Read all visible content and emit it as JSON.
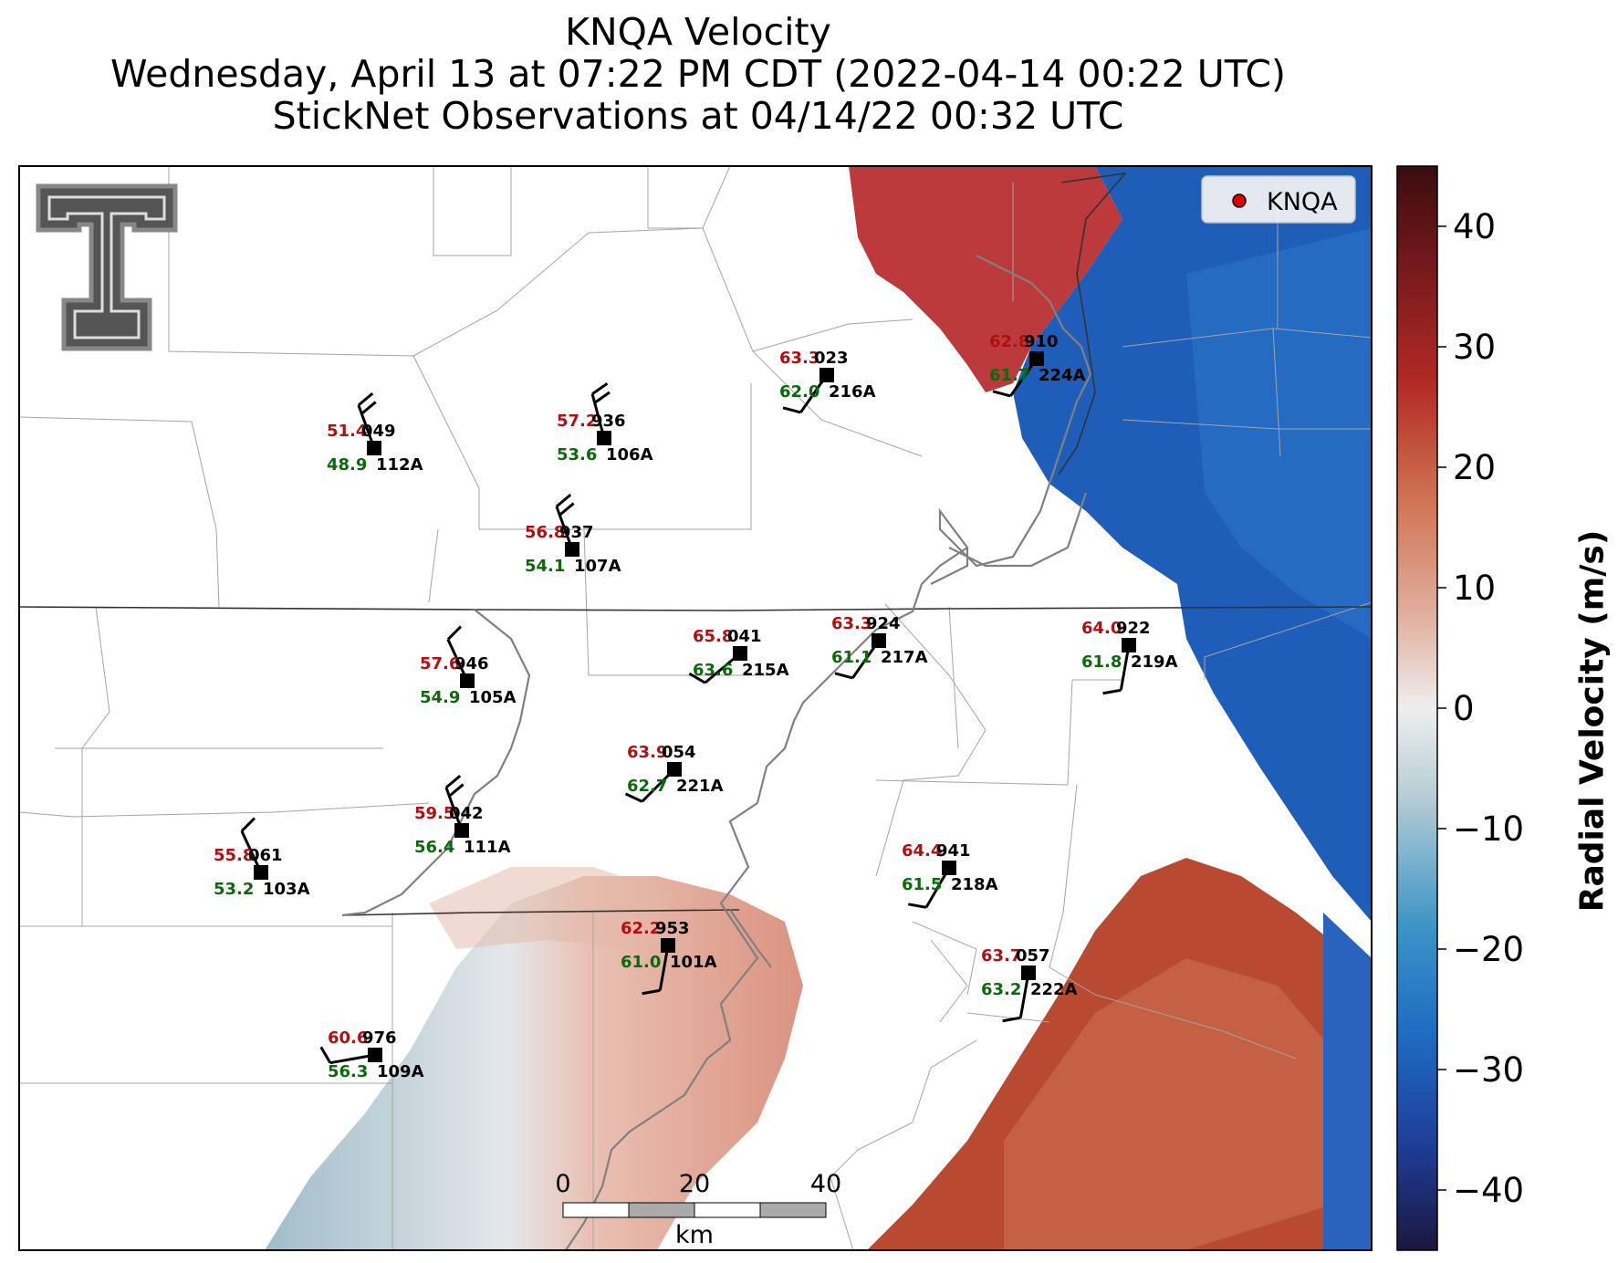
{
  "titles": {
    "line1": "KNQA Velocity",
    "line2": "Wednesday, April 13 at 07:22 PM CDT (2022-04-14 00:22 UTC)",
    "line3": "StickNet Observations at 04/14/22 00:32 UTC"
  },
  "legend": {
    "label": "KNQA",
    "marker_color": "#e00000"
  },
  "colorbar": {
    "label": "Radial Velocity (m/s)",
    "ticks": [
      "40",
      "30",
      "20",
      "10",
      "0",
      "−10",
      "−20",
      "−30",
      "−40"
    ],
    "vmin": -45,
    "vmax": 45,
    "colors": [
      "#1b1740",
      "#1f3f9a",
      "#1e6cc4",
      "#3d95c6",
      "#b8cdd6",
      "#eeeeee",
      "#e2b2a3",
      "#cf6e4e",
      "#b22a25",
      "#7a1a1d",
      "#3a0c10"
    ]
  },
  "scalebar": {
    "ticks": [
      "0",
      "20",
      "40"
    ],
    "unit": "km"
  },
  "stations": [
    {
      "id": "112A",
      "num": "049",
      "temp": "51.4",
      "dew": "48.9"
    },
    {
      "id": "106A",
      "num": "936",
      "temp": "57.2",
      "dew": "53.6"
    },
    {
      "id": "216A",
      "num": "023",
      "temp": "63.3",
      "dew": "62.0"
    },
    {
      "id": "224A",
      "num": "910",
      "temp": "62.8",
      "dew": "61.7"
    },
    {
      "id": "107A",
      "num": "937",
      "temp": "56.8",
      "dew": "54.1"
    },
    {
      "id": "215A",
      "num": "041",
      "temp": "65.8",
      "dew": "63.6"
    },
    {
      "id": "217A",
      "num": "924",
      "temp": "63.3",
      "dew": "61.1"
    },
    {
      "id": "219A",
      "num": "922",
      "temp": "64.0",
      "dew": "61.8"
    },
    {
      "id": "105A",
      "num": "946",
      "temp": "57.6",
      "dew": "54.9"
    },
    {
      "id": "221A",
      "num": "054",
      "temp": "63.9",
      "dew": "62.7"
    },
    {
      "id": "111A",
      "num": "042",
      "temp": "59.5",
      "dew": "56.4"
    },
    {
      "id": "103A",
      "num": "061",
      "temp": "55.8",
      "dew": "53.2"
    },
    {
      "id": "218A",
      "num": "941",
      "temp": "64.4",
      "dew": "61.5"
    },
    {
      "id": "101A",
      "num": "953",
      "temp": "62.2",
      "dew": "61.0"
    },
    {
      "id": "222A",
      "num": "057",
      "temp": "63.7",
      "dew": "63.2"
    },
    {
      "id": "109A",
      "num": "976",
      "temp": "60.6",
      "dew": "56.3"
    }
  ],
  "colors": {
    "temp": "#b01010",
    "dew": "#0b6b0b",
    "station": "#000000"
  },
  "icons": {
    "logo": "double-t-logo",
    "radar": "radar-site-marker"
  }
}
